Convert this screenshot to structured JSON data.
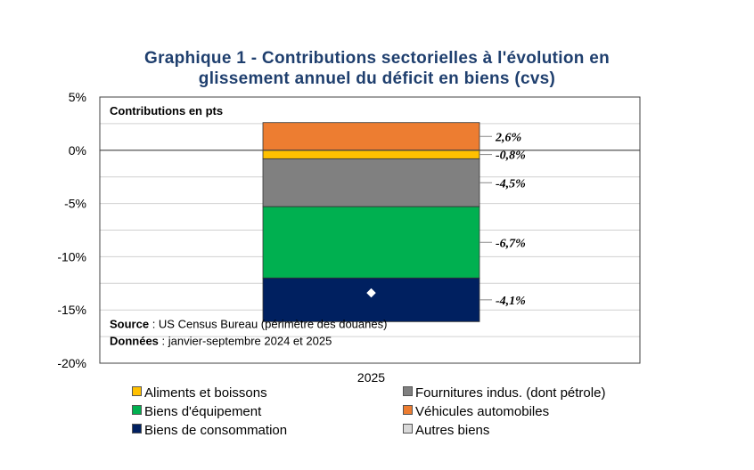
{
  "chart_data": {
    "type": "bar",
    "stacked": true,
    "title": "Graphique 1 - Contributions sectorielles à l'évolution en glissement annuel du déficit en biens (cvs)",
    "title_lines": [
      "Graphique 1 - Contributions sectorielles à l'évolution en",
      "glissement annuel du déficit en biens (cvs)"
    ],
    "ylabel": "Contributions en pts",
    "categories": [
      "2025"
    ],
    "ylim": [
      -20,
      5
    ],
    "yticks": [
      "5%",
      "0%",
      "-5%",
      "-10%",
      "-15%",
      "-20%"
    ],
    "ytick_values": [
      5,
      0,
      -5,
      -10,
      -15,
      -20
    ],
    "grid": true,
    "series": [
      {
        "name": "Véhicules automobiles",
        "values": [
          2.6
        ],
        "color": "#ed7d31",
        "label": "2,6%"
      },
      {
        "name": "Aliments et boissons",
        "values": [
          -0.8
        ],
        "color": "#ffc000",
        "label": "-0,8%"
      },
      {
        "name": "Fournitures indus. (dont pétrole)",
        "values": [
          -4.5
        ],
        "color": "#808080",
        "label": "-4,5%"
      },
      {
        "name": "Biens d'équipement",
        "values": [
          -6.7
        ],
        "color": "#00b050",
        "label": "-6,7%"
      },
      {
        "name": "Biens de consommation",
        "values": [
          -4.1
        ],
        "color": "#002060",
        "label": "-4,1%"
      },
      {
        "name": "Autres biens",
        "values": [
          0
        ],
        "color": "#d9d9d9",
        "label": ""
      }
    ],
    "total_marker": {
      "value": -13.4,
      "color": "#ffffff"
    },
    "source_label": "Source",
    "source_text": " : US Census Bureau (périmètre des douanes)",
    "donnees_label": "Données",
    "donnees_text": " : janvier-septembre 2024 et 2025",
    "legend": [
      {
        "name": "Aliments et boissons",
        "color": "#ffc000"
      },
      {
        "name": "Fournitures indus. (dont pétrole)",
        "color": "#808080"
      },
      {
        "name": "Biens d'équipement",
        "color": "#00b050"
      },
      {
        "name": "Véhicules automobiles",
        "color": "#ed7d31"
      },
      {
        "name": "Biens de consommation",
        "color": "#002060"
      },
      {
        "name": "Autres biens",
        "color": "#d9d9d9"
      }
    ]
  }
}
